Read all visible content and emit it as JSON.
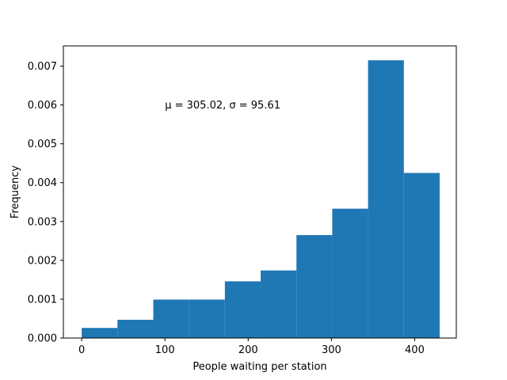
{
  "chart_data": {
    "type": "histogram",
    "xlabel": "People waiting per station",
    "ylabel": "Frequency",
    "annotation": {
      "text": "μ = 305.02,  σ = 95.61",
      "x": 100,
      "y": 0.006
    },
    "bar_color": "#1f77b4",
    "xlim": [
      -22,
      450
    ],
    "ylim": [
      0,
      0.00752
    ],
    "x_ticks": [
      0,
      100,
      200,
      300,
      400
    ],
    "y_ticks": [
      0.0,
      0.001,
      0.002,
      0.003,
      0.004,
      0.005,
      0.006,
      0.007
    ],
    "x_tick_labels": [
      "0",
      "100",
      "200",
      "300",
      "400"
    ],
    "y_tick_labels": [
      "0.000",
      "0.001",
      "0.002",
      "0.003",
      "0.004",
      "0.005",
      "0.006",
      "0.007"
    ],
    "bins": [
      0,
      43,
      86,
      129,
      172,
      215,
      258,
      301,
      344,
      387,
      430
    ],
    "values": [
      0.00026,
      0.00047,
      0.00099,
      0.00099,
      0.00146,
      0.00174,
      0.00265,
      0.00333,
      0.00715,
      0.00425
    ]
  }
}
